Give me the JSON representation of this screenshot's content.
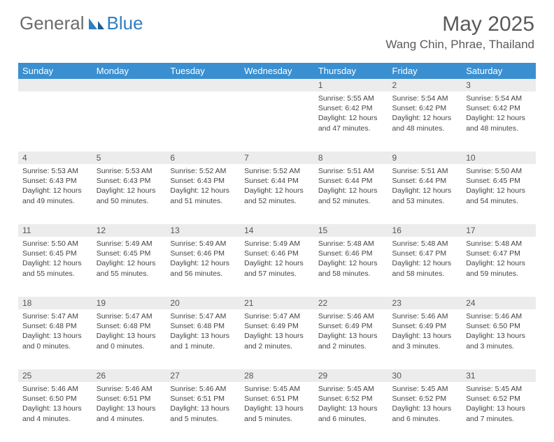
{
  "brand": {
    "part1": "General",
    "part2": "Blue"
  },
  "title": "May 2025",
  "location": "Wang Chin, Phrae, Thailand",
  "colors": {
    "header_bg": "#3a8fd0",
    "header_fg": "#ffffff",
    "daynum_bg": "#ececec",
    "text": "#444444",
    "brand_gray": "#6b6b6b",
    "brand_blue": "#2f7fc2"
  },
  "dayNames": [
    "Sunday",
    "Monday",
    "Tuesday",
    "Wednesday",
    "Thursday",
    "Friday",
    "Saturday"
  ],
  "weeks": [
    [
      {
        "n": "",
        "lines": []
      },
      {
        "n": "",
        "lines": []
      },
      {
        "n": "",
        "lines": []
      },
      {
        "n": "",
        "lines": []
      },
      {
        "n": "1",
        "lines": [
          "Sunrise: 5:55 AM",
          "Sunset: 6:42 PM",
          "Daylight: 12 hours",
          "and 47 minutes."
        ]
      },
      {
        "n": "2",
        "lines": [
          "Sunrise: 5:54 AM",
          "Sunset: 6:42 PM",
          "Daylight: 12 hours",
          "and 48 minutes."
        ]
      },
      {
        "n": "3",
        "lines": [
          "Sunrise: 5:54 AM",
          "Sunset: 6:42 PM",
          "Daylight: 12 hours",
          "and 48 minutes."
        ]
      }
    ],
    [
      {
        "n": "4",
        "lines": [
          "Sunrise: 5:53 AM",
          "Sunset: 6:43 PM",
          "Daylight: 12 hours",
          "and 49 minutes."
        ]
      },
      {
        "n": "5",
        "lines": [
          "Sunrise: 5:53 AM",
          "Sunset: 6:43 PM",
          "Daylight: 12 hours",
          "and 50 minutes."
        ]
      },
      {
        "n": "6",
        "lines": [
          "Sunrise: 5:52 AM",
          "Sunset: 6:43 PM",
          "Daylight: 12 hours",
          "and 51 minutes."
        ]
      },
      {
        "n": "7",
        "lines": [
          "Sunrise: 5:52 AM",
          "Sunset: 6:44 PM",
          "Daylight: 12 hours",
          "and 52 minutes."
        ]
      },
      {
        "n": "8",
        "lines": [
          "Sunrise: 5:51 AM",
          "Sunset: 6:44 PM",
          "Daylight: 12 hours",
          "and 52 minutes."
        ]
      },
      {
        "n": "9",
        "lines": [
          "Sunrise: 5:51 AM",
          "Sunset: 6:44 PM",
          "Daylight: 12 hours",
          "and 53 minutes."
        ]
      },
      {
        "n": "10",
        "lines": [
          "Sunrise: 5:50 AM",
          "Sunset: 6:45 PM",
          "Daylight: 12 hours",
          "and 54 minutes."
        ]
      }
    ],
    [
      {
        "n": "11",
        "lines": [
          "Sunrise: 5:50 AM",
          "Sunset: 6:45 PM",
          "Daylight: 12 hours",
          "and 55 minutes."
        ]
      },
      {
        "n": "12",
        "lines": [
          "Sunrise: 5:49 AM",
          "Sunset: 6:45 PM",
          "Daylight: 12 hours",
          "and 55 minutes."
        ]
      },
      {
        "n": "13",
        "lines": [
          "Sunrise: 5:49 AM",
          "Sunset: 6:46 PM",
          "Daylight: 12 hours",
          "and 56 minutes."
        ]
      },
      {
        "n": "14",
        "lines": [
          "Sunrise: 5:49 AM",
          "Sunset: 6:46 PM",
          "Daylight: 12 hours",
          "and 57 minutes."
        ]
      },
      {
        "n": "15",
        "lines": [
          "Sunrise: 5:48 AM",
          "Sunset: 6:46 PM",
          "Daylight: 12 hours",
          "and 58 minutes."
        ]
      },
      {
        "n": "16",
        "lines": [
          "Sunrise: 5:48 AM",
          "Sunset: 6:47 PM",
          "Daylight: 12 hours",
          "and 58 minutes."
        ]
      },
      {
        "n": "17",
        "lines": [
          "Sunrise: 5:48 AM",
          "Sunset: 6:47 PM",
          "Daylight: 12 hours",
          "and 59 minutes."
        ]
      }
    ],
    [
      {
        "n": "18",
        "lines": [
          "Sunrise: 5:47 AM",
          "Sunset: 6:48 PM",
          "Daylight: 13 hours",
          "and 0 minutes."
        ]
      },
      {
        "n": "19",
        "lines": [
          "Sunrise: 5:47 AM",
          "Sunset: 6:48 PM",
          "Daylight: 13 hours",
          "and 0 minutes."
        ]
      },
      {
        "n": "20",
        "lines": [
          "Sunrise: 5:47 AM",
          "Sunset: 6:48 PM",
          "Daylight: 13 hours",
          "and 1 minute."
        ]
      },
      {
        "n": "21",
        "lines": [
          "Sunrise: 5:47 AM",
          "Sunset: 6:49 PM",
          "Daylight: 13 hours",
          "and 2 minutes."
        ]
      },
      {
        "n": "22",
        "lines": [
          "Sunrise: 5:46 AM",
          "Sunset: 6:49 PM",
          "Daylight: 13 hours",
          "and 2 minutes."
        ]
      },
      {
        "n": "23",
        "lines": [
          "Sunrise: 5:46 AM",
          "Sunset: 6:49 PM",
          "Daylight: 13 hours",
          "and 3 minutes."
        ]
      },
      {
        "n": "24",
        "lines": [
          "Sunrise: 5:46 AM",
          "Sunset: 6:50 PM",
          "Daylight: 13 hours",
          "and 3 minutes."
        ]
      }
    ],
    [
      {
        "n": "25",
        "lines": [
          "Sunrise: 5:46 AM",
          "Sunset: 6:50 PM",
          "Daylight: 13 hours",
          "and 4 minutes."
        ]
      },
      {
        "n": "26",
        "lines": [
          "Sunrise: 5:46 AM",
          "Sunset: 6:51 PM",
          "Daylight: 13 hours",
          "and 4 minutes."
        ]
      },
      {
        "n": "27",
        "lines": [
          "Sunrise: 5:46 AM",
          "Sunset: 6:51 PM",
          "Daylight: 13 hours",
          "and 5 minutes."
        ]
      },
      {
        "n": "28",
        "lines": [
          "Sunrise: 5:45 AM",
          "Sunset: 6:51 PM",
          "Daylight: 13 hours",
          "and 5 minutes."
        ]
      },
      {
        "n": "29",
        "lines": [
          "Sunrise: 5:45 AM",
          "Sunset: 6:52 PM",
          "Daylight: 13 hours",
          "and 6 minutes."
        ]
      },
      {
        "n": "30",
        "lines": [
          "Sunrise: 5:45 AM",
          "Sunset: 6:52 PM",
          "Daylight: 13 hours",
          "and 6 minutes."
        ]
      },
      {
        "n": "31",
        "lines": [
          "Sunrise: 5:45 AM",
          "Sunset: 6:52 PM",
          "Daylight: 13 hours",
          "and 7 minutes."
        ]
      }
    ]
  ]
}
